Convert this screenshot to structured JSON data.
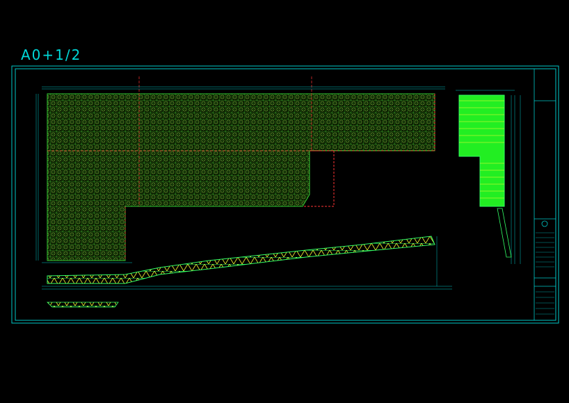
{
  "title": "A0+1/2"
}
